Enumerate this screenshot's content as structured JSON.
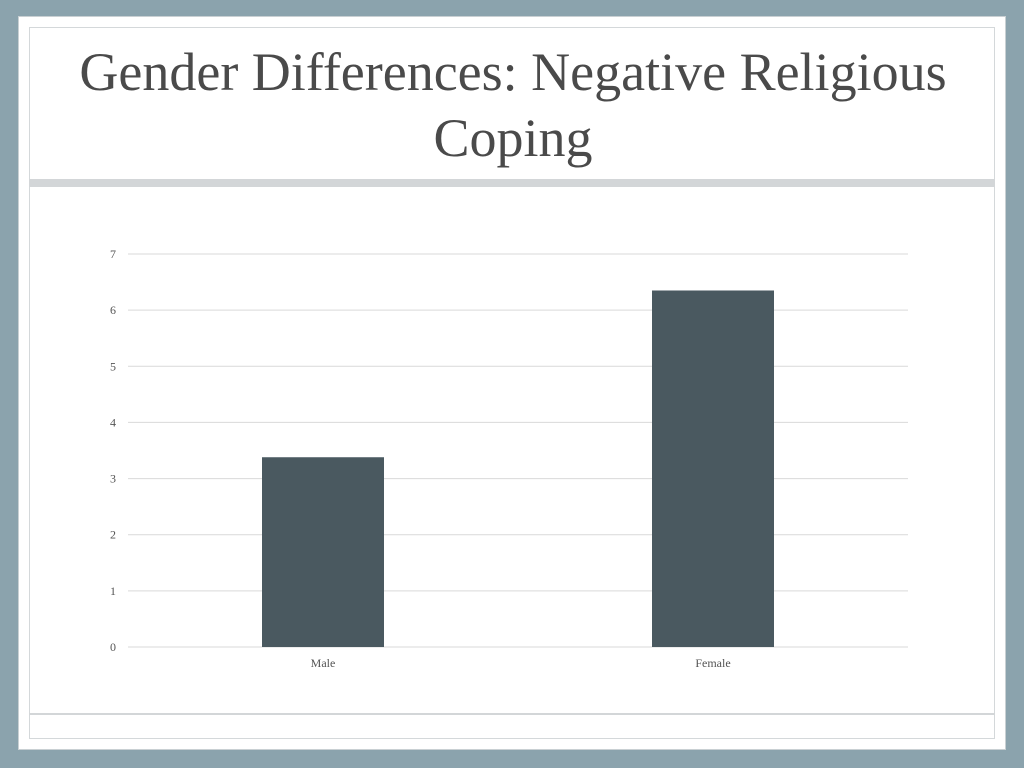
{
  "slide": {
    "title": "Gender Differences: Negative Religious Coping"
  },
  "colors": {
    "background": "#8ba3ad",
    "bar": "#4a5960",
    "gridline": "#d9d9d9",
    "title": "#4a4a4a"
  },
  "chart_data": {
    "type": "bar",
    "categories": [
      "Male",
      "Female"
    ],
    "values": [
      3.38,
      6.35
    ],
    "ylim": [
      0,
      7
    ],
    "yticks": [
      0,
      1,
      2,
      3,
      4,
      5,
      6,
      7
    ],
    "grid": true,
    "legend": "none"
  }
}
